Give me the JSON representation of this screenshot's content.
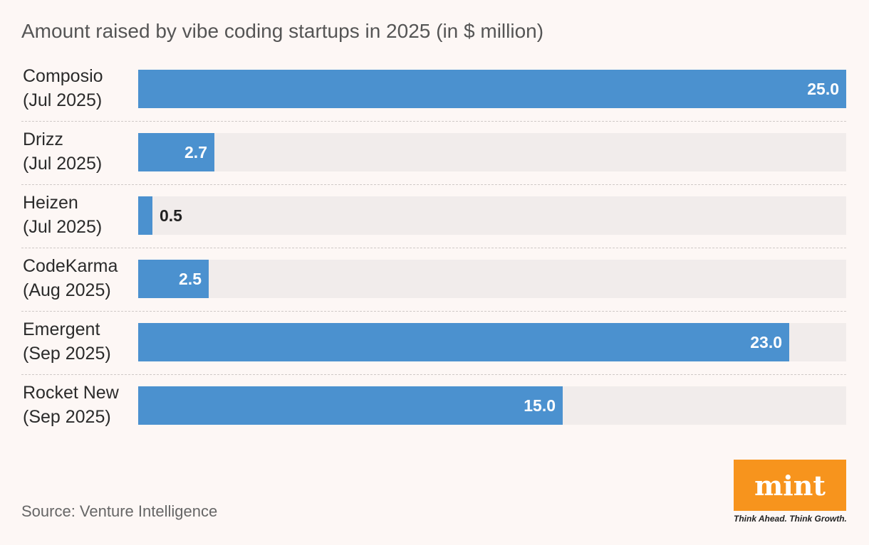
{
  "chart_data": {
    "type": "bar",
    "orientation": "horizontal",
    "title": "Amount raised by vibe coding startups in 2025 (in $ million)",
    "categories": [
      [
        "Composio",
        "(Jul 2025)"
      ],
      [
        "Drizz",
        "(Jul 2025)"
      ],
      [
        "Heizen",
        "(Jul 2025)"
      ],
      [
        "CodeKarma",
        "(Aug 2025)"
      ],
      [
        "Emergent",
        "(Sep 2025)"
      ],
      [
        "Rocket New",
        "(Sep 2025)"
      ]
    ],
    "values": [
      25.0,
      2.7,
      0.5,
      2.5,
      23.0,
      15.0
    ],
    "value_labels": [
      "25.0",
      "2.7",
      "0.5",
      "2.5",
      "23.0",
      "15.0"
    ],
    "xlim": [
      0,
      25
    ],
    "grid": false,
    "legend": "none",
    "bar_color": "#4b91cf",
    "track_color": "#f1eceb"
  },
  "source": "Source: Venture Intelligence",
  "brand": {
    "logo_text": "mint",
    "tagline": "Think Ahead. Think Growth.",
    "color": "#f7941d"
  }
}
